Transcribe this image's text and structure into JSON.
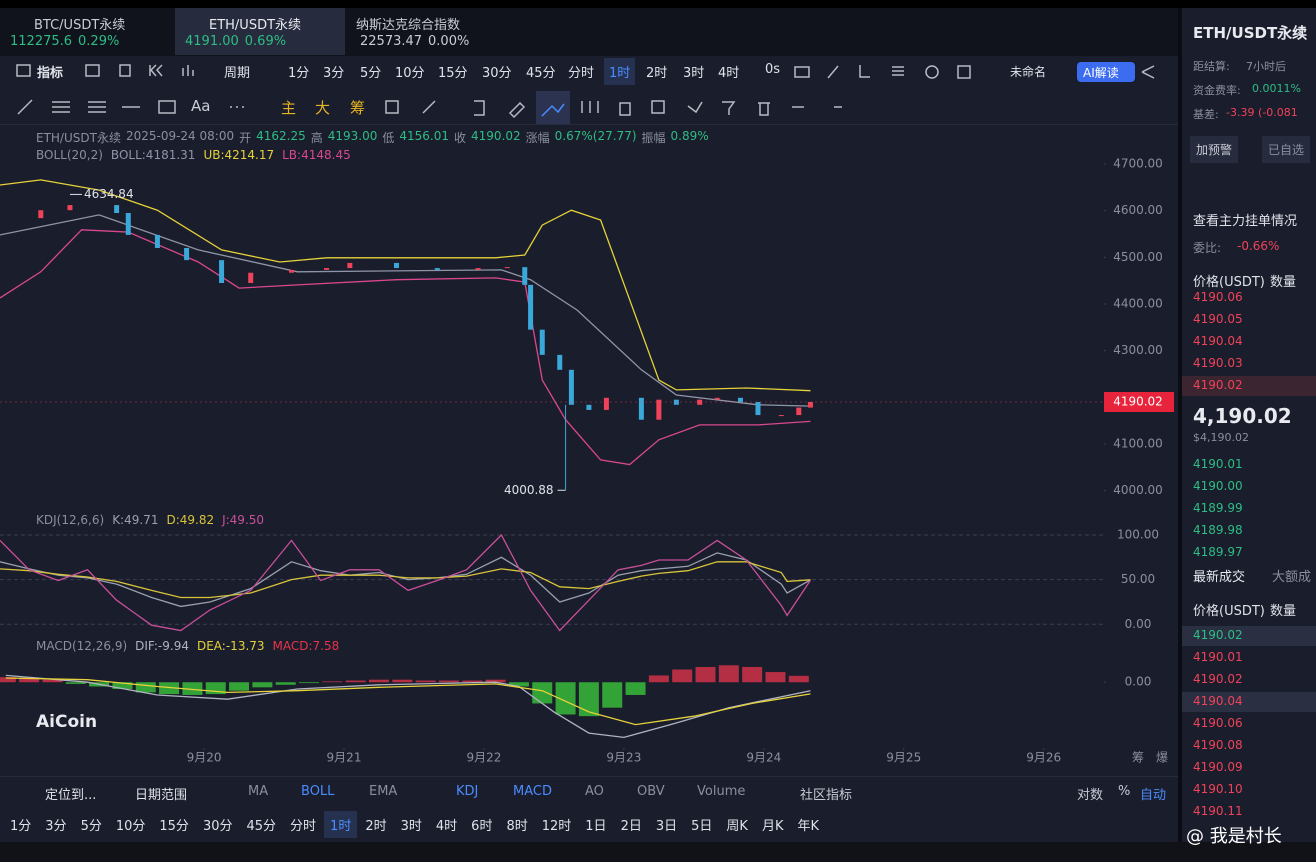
{
  "tabs": [
    {
      "name": "BTC/USDT永续",
      "price": "112275.6",
      "change": "0.29%"
    },
    {
      "name": "ETH/USDT永续",
      "price": "4191.00",
      "change": "0.69%"
    },
    {
      "name": "纳斯达克综合指数",
      "price": "22573.47",
      "change": "0.00%"
    }
  ],
  "toolbar": {
    "indicator": "指标",
    "period": "周期",
    "intervals": [
      "1分",
      "3分",
      "5分",
      "10分",
      "15分",
      "30分",
      "45分",
      "分时",
      "1时",
      "2时",
      "3时",
      "4时"
    ],
    "seconds": "0s",
    "layout": "未命名",
    "ai": "AI解读"
  },
  "drawing_tools": {
    "text": "Aa",
    "main": "主",
    "big": "大",
    "chip": "筹"
  },
  "chart_header": {
    "symbol": "ETH/USDT永续",
    "date": "2025-09-24 08:00",
    "open_label": "开",
    "open": "4162.25",
    "high_label": "高",
    "high": "4193.00",
    "low_label": "低",
    "low": "4156.01",
    "close_label": "收",
    "close": "4190.02",
    "change_label": "涨幅",
    "change": "0.67%(27.77)",
    "amp_label": "振幅",
    "amp": "0.89%"
  },
  "chart_data": [
    {
      "type": "candlestick",
      "indicator": "BOLL(20,2)",
      "up_color": "#f0435a",
      "down_color": "#3aa8d8",
      "grid": false,
      "x": [
        -35,
        -28,
        -23,
        -15,
        -13,
        -8,
        -3,
        3,
        8,
        15,
        21,
        25,
        33,
        40,
        47,
        52,
        55,
        56,
        58,
        61,
        63,
        66,
        69,
        75,
        78,
        81,
        85,
        88,
        92,
        95,
        99,
        102,
        104
      ],
      "values": [
        4584,
        4601,
        4612,
        4595,
        4548,
        4520,
        4494,
        4445,
        4467,
        4473,
        4477,
        4488,
        4477,
        4473,
        4477,
        4479,
        4441,
        4345,
        4291,
        4259,
        4184,
        4173,
        4199,
        4152,
        4195,
        4184,
        4195,
        4199,
        4190,
        4162,
        4162,
        4178,
        4190.02
      ],
      "series": [
        {
          "name": "BOLL:4181.31",
          "color": "#8f95a8",
          "x": [
            -35,
            -18,
            -1,
            16,
            51,
            56,
            64,
            75,
            81,
            95,
            104
          ],
          "values": [
            4548,
            4591,
            4516,
            4469,
            4473,
            4452,
            4387,
            4259,
            4205,
            4184,
            4181.31
          ]
        },
        {
          "name": "UB:4214.17",
          "color": "#e6d23a",
          "x": [
            -35,
            -28,
            -18,
            -8,
            3,
            13,
            21,
            33,
            50,
            55,
            58,
            63,
            68,
            73,
            78,
            81,
            93,
            104
          ],
          "values": [
            4655,
            4666,
            4644,
            4601,
            4516,
            4490,
            4499,
            4499,
            4499,
            4505,
            4569,
            4601,
            4580,
            4409,
            4237,
            4216,
            4220,
            4214.17
          ]
        },
        {
          "name": "LB:4148.45",
          "color": "#d9488f",
          "x": [
            -35,
            -28,
            -21,
            -13,
            -1,
            6,
            16,
            33,
            50,
            55,
            58,
            62,
            68,
            73,
            78,
            85,
            95,
            104
          ],
          "values": [
            4413,
            4469,
            4559,
            4554,
            4490,
            4434,
            4441,
            4452,
            4456,
            4447,
            4237,
            4152,
            4066,
            4056,
            4109,
            4141,
            4141,
            4148.45
          ]
        }
      ],
      "xlim": [
        -35,
        154
      ],
      "ylim": [
        3950,
        4760
      ],
      "xticks": [
        {
          "value": 0,
          "label": "9月20"
        },
        {
          "value": 24,
          "label": "9月21"
        },
        {
          "value": 48,
          "label": "9月22"
        },
        {
          "value": 72,
          "label": "9月23"
        },
        {
          "value": 96,
          "label": "9月24"
        },
        {
          "value": 120,
          "label": "9月25"
        },
        {
          "value": 144,
          "label": "9月26"
        }
      ],
      "yticks": [
        {
          "value": 4000,
          "label": "4000.00"
        },
        {
          "value": 4100,
          "label": "4100.00"
        },
        {
          "value": 4200,
          "label": "4200.00"
        },
        {
          "value": 4300,
          "label": "4300.00"
        },
        {
          "value": 4400,
          "label": "4400.00"
        },
        {
          "value": 4500,
          "label": "4500.00"
        },
        {
          "value": 4600,
          "label": "4600.00"
        },
        {
          "value": 4700,
          "label": "4700.00"
        }
      ],
      "annotations": [
        {
          "x": -23,
          "value": 4634.84,
          "label": "4634.84"
        },
        {
          "x": 62,
          "value": 4000.88,
          "label": "4000.88"
        }
      ],
      "last": {
        "value": 4190.02,
        "label": "4190.02"
      }
    },
    {
      "type": "line",
      "indicator": "KDJ(12,6,6)",
      "grid": true,
      "x": [
        -35,
        -30,
        -25,
        -20,
        -15,
        -9,
        -4,
        1,
        8,
        15,
        20,
        25,
        30,
        35,
        40,
        45,
        51,
        56,
        61,
        66,
        71,
        75,
        78,
        83,
        88,
        93,
        99,
        100,
        104
      ],
      "series": [
        {
          "name": "K:49.71",
          "color": "#9aa0b0",
          "values": [
            70,
            62,
            55,
            52,
            45,
            30,
            20,
            25,
            40,
            70,
            60,
            55,
            58,
            50,
            52,
            56,
            75,
            55,
            25,
            35,
            55,
            60,
            62,
            65,
            80,
            72,
            45,
            35,
            49.71
          ]
        },
        {
          "name": "D:49.82",
          "color": "#d8c43a",
          "values": [
            62,
            60,
            56,
            53,
            48,
            38,
            30,
            30,
            35,
            50,
            55,
            55,
            55,
            52,
            52,
            54,
            62,
            58,
            42,
            40,
            48,
            54,
            57,
            60,
            70,
            70,
            58,
            48,
            49.82
          ]
        },
        {
          "name": "J:49.50",
          "color": "#c8509a",
          "values": [
            94,
            61,
            49,
            61,
            27,
            -1,
            -7,
            16,
            38,
            94,
            49,
            61,
            61,
            38,
            49,
            61,
            100,
            38,
            -7,
            27,
            61,
            66,
            72,
            72,
            94,
            72,
            21,
            10,
            49.5
          ]
        }
      ],
      "xlim": [
        -35,
        154
      ],
      "ylim": [
        -12,
        128
      ],
      "yticks": [
        {
          "value": 0,
          "label": "0.00"
        },
        {
          "value": 50,
          "label": "50.00"
        },
        {
          "value": 100,
          "label": "100.00"
        }
      ]
    },
    {
      "type": "macd",
      "indicator": "MACD(12,26,9)",
      "grid": false,
      "up_color": "#e8344d",
      "down_color": "#3ccf3c",
      "histogram": {
        "name": "MACD:7.58",
        "x": [
          -34,
          -30,
          -26,
          -22,
          -18,
          -14,
          -10,
          -6,
          -2,
          2,
          6,
          10,
          14,
          18,
          22,
          26,
          30,
          34,
          38,
          42,
          46,
          50,
          54,
          58,
          62,
          66,
          70,
          74,
          78,
          82,
          86,
          90,
          94,
          98,
          102
        ],
        "values": [
          6,
          5,
          3,
          -2,
          -5,
          -8,
          -12,
          -14,
          -15,
          -14,
          -10,
          -6,
          -3,
          -1,
          1,
          2,
          3,
          3,
          2,
          2,
          2,
          3,
          -5,
          -25,
          -38,
          -40,
          -30,
          -15,
          8,
          15,
          18,
          20,
          18,
          12,
          7.58
        ]
      },
      "series": [
        {
          "name": "DIF:-9.94",
          "color": "#b0b4c0",
          "x": [
            -34,
            -20,
            -8,
            4,
            16,
            30,
            50,
            54,
            60,
            66,
            72,
            80,
            90,
            104
          ],
          "values": [
            8,
            0,
            -15,
            -20,
            -8,
            -3,
            0,
            -5,
            -35,
            -60,
            -65,
            -50,
            -30,
            -9.94
          ]
        },
        {
          "name": "DEA:-13.73",
          "color": "#e6d23a",
          "x": [
            -34,
            -20,
            -8,
            4,
            16,
            30,
            50,
            58,
            66,
            74,
            84,
            94,
            104
          ],
          "values": [
            5,
            3,
            -5,
            -12,
            -10,
            -6,
            -2,
            -10,
            -35,
            -50,
            -40,
            -25,
            -13.73
          ]
        }
      ],
      "xlim": [
        -35,
        154
      ],
      "ylim": [
        -74,
        38
      ],
      "yticks": [
        {
          "value": 0,
          "label": "0.00"
        }
      ]
    }
  ],
  "axis_extras": [
    "筹",
    "爆"
  ],
  "watermark": "AiCoin",
  "bottom_bar": {
    "locate": "定位到...",
    "range": "日期范围",
    "indicators": [
      "MA",
      "BOLL",
      "EMA",
      "KDJ",
      "MACD",
      "AO",
      "OBV",
      "Volume"
    ],
    "community": "社区指标",
    "log": "对数",
    "percent": "%",
    "auto": "自动"
  },
  "bottom_intervals": [
    "1分",
    "3分",
    "5分",
    "10分",
    "15分",
    "30分",
    "45分",
    "分时",
    "1时",
    "2时",
    "3时",
    "4时",
    "6时",
    "8时",
    "12时",
    "1日",
    "2日",
    "3日",
    "5日",
    "周K",
    "月K",
    "年K"
  ],
  "credit": "@ 我是村长",
  "side_panel": {
    "title": "ETH/USDT永续",
    "settle_label": "距结算:",
    "settle": "7小时后",
    "funding_label": "资金费率:",
    "funding": "0.0011%",
    "basis_label": "基差:",
    "basis": "-3.39 (-0.081",
    "alert": "加预警",
    "favorite": "已自选",
    "depth_title": "查看主力挂单情况",
    "ratio_label": "委比:",
    "ratio": "-0.66%",
    "price_header": "价格(USDT)",
    "qty_header": "数量",
    "asks": [
      "4190.06",
      "4190.05",
      "4190.04",
      "4190.03",
      "4190.02"
    ],
    "last": "4,190.02",
    "last_usd": "$4,190.02",
    "bids": [
      "4190.01",
      "4190.00",
      "4189.99",
      "4189.98",
      "4189.97"
    ],
    "trade_tab": "最新成交",
    "large_tab": "大额成",
    "trade_prices": [
      "4190.02",
      "4190.01",
      "4190.02",
      "4190.04",
      "4190.06",
      "4190.08",
      "4190.09",
      "4190.10",
      "4190.11"
    ],
    "trade_colors": [
      "#2ebd85",
      "#f0435a",
      "#f0435a",
      "#f0435a",
      "#f0435a",
      "#f0435a",
      "#f0435a",
      "#f0435a",
      "#f0435a"
    ]
  }
}
